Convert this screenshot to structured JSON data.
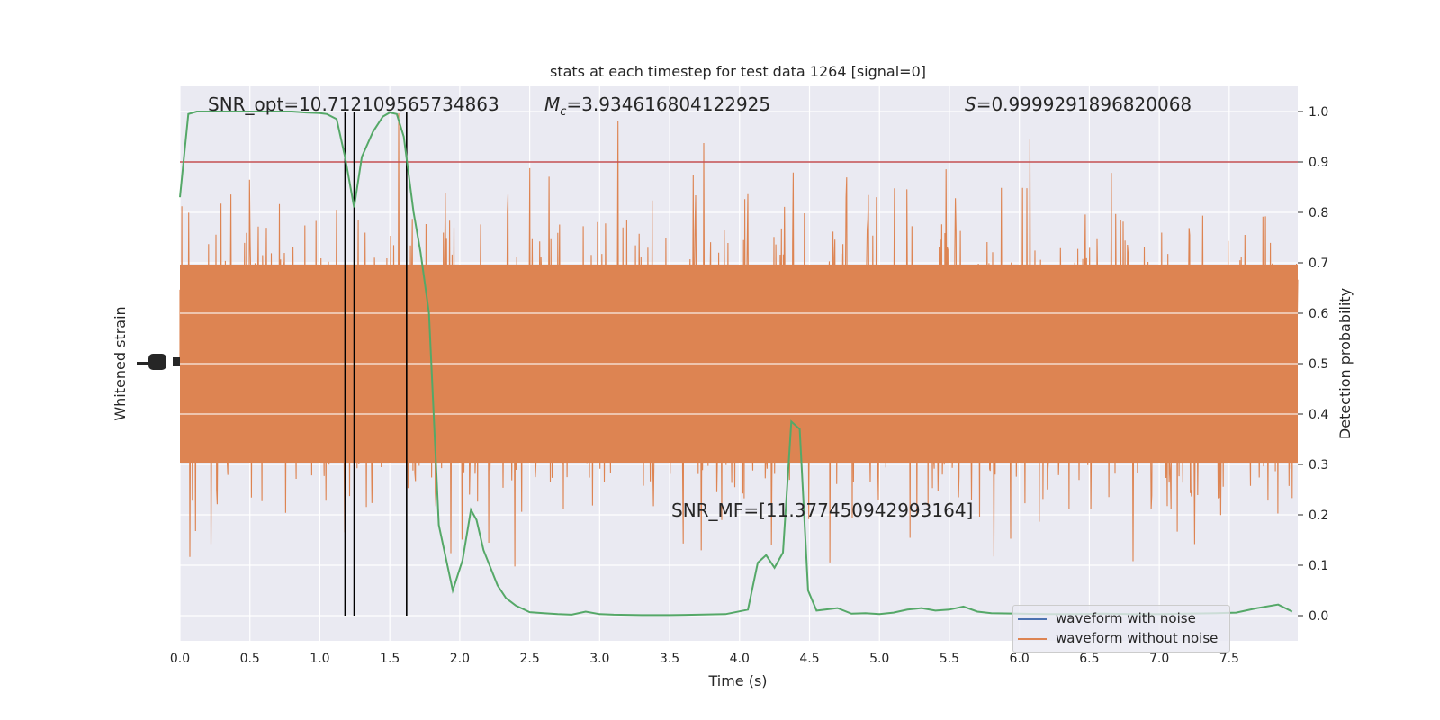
{
  "chart_data": {
    "type": "line",
    "title": "stats at each timestep for test data 1264 [signal=0]",
    "xlabel": "Time (s)",
    "ylabel_left": "Whitened strain",
    "ylabel_right": "Detection probability",
    "xlim": [
      0.0,
      7.99
    ],
    "ylim_right": [
      -0.05,
      1.05
    ],
    "x_ticks": [
      "0.0",
      "0.5",
      "1.0",
      "1.5",
      "2.0",
      "2.5",
      "3.0",
      "3.5",
      "4.0",
      "4.5",
      "5.0",
      "5.5",
      "6.0",
      "6.5",
      "7.0",
      "7.5"
    ],
    "y_ticks_right": [
      "0.0",
      "0.1",
      "0.2",
      "0.3",
      "0.4",
      "0.5",
      "0.6",
      "0.7",
      "0.8",
      "0.9",
      "1.0"
    ],
    "grid": true,
    "legend_position": "lower-right",
    "annotations": {
      "snr_opt": "SNR_opt=10.712109565734863",
      "mc_symbol": "M",
      "mc_sub": "c",
      "mc_value": "=3.934616804122925",
      "s_symbol": "S",
      "s_value": "=0.9999291896820068",
      "snr_mf": "SNR_MF=[11.377450942993164]"
    },
    "threshold": 0.9,
    "event_lines_x": [
      1.18,
      1.245,
      1.62
    ],
    "series": [
      {
        "name": "waveform with noise",
        "color": "#4c72b0",
        "values": []
      },
      {
        "name": "waveform without noise",
        "color": "#dd8452",
        "style": "dense-noise"
      },
      {
        "color": "#55a868",
        "x": [
          0.0,
          0.06,
          0.12,
          0.2,
          0.3,
          0.4,
          0.5,
          0.6,
          0.7,
          0.8,
          0.9,
          1.0,
          1.05,
          1.12,
          1.18,
          1.245,
          1.3,
          1.38,
          1.45,
          1.5,
          1.55,
          1.6,
          1.67,
          1.72,
          1.78,
          1.85,
          1.95,
          2.02,
          2.08,
          2.12,
          2.17,
          2.27,
          2.33,
          2.4,
          2.5,
          2.6,
          2.7,
          2.8,
          2.9,
          3.0,
          3.1,
          3.3,
          3.5,
          3.7,
          3.9,
          4.06,
          4.13,
          4.19,
          4.25,
          4.31,
          4.37,
          4.43,
          4.49,
          4.55,
          4.7,
          4.8,
          4.9,
          5.0,
          5.1,
          5.2,
          5.3,
          5.4,
          5.5,
          5.6,
          5.7,
          5.8,
          6.0,
          6.2,
          6.4,
          6.6,
          6.8,
          7.0,
          7.2,
          7.4,
          7.55,
          7.7,
          7.85,
          7.95
        ],
        "values": [
          0.83,
          0.995,
          1.0,
          1.0,
          1.0,
          1.0,
          1.0,
          1.0,
          1.0,
          1.0,
          0.998,
          0.997,
          0.995,
          0.985,
          0.91,
          0.81,
          0.91,
          0.96,
          0.99,
          0.998,
          0.995,
          0.95,
          0.8,
          0.72,
          0.6,
          0.18,
          0.05,
          0.11,
          0.21,
          0.19,
          0.13,
          0.06,
          0.035,
          0.02,
          0.007,
          0.005,
          0.003,
          0.002,
          0.008,
          0.003,
          0.002,
          0.001,
          0.001,
          0.002,
          0.003,
          0.012,
          0.105,
          0.12,
          0.095,
          0.125,
          0.385,
          0.37,
          0.05,
          0.01,
          0.015,
          0.004,
          0.005,
          0.003,
          0.006,
          0.012,
          0.015,
          0.01,
          0.012,
          0.018,
          0.008,
          0.005,
          0.004,
          0.003,
          0.003,
          0.004,
          0.003,
          0.003,
          0.004,
          0.005,
          0.006,
          0.015,
          0.022,
          0.008
        ]
      }
    ]
  }
}
